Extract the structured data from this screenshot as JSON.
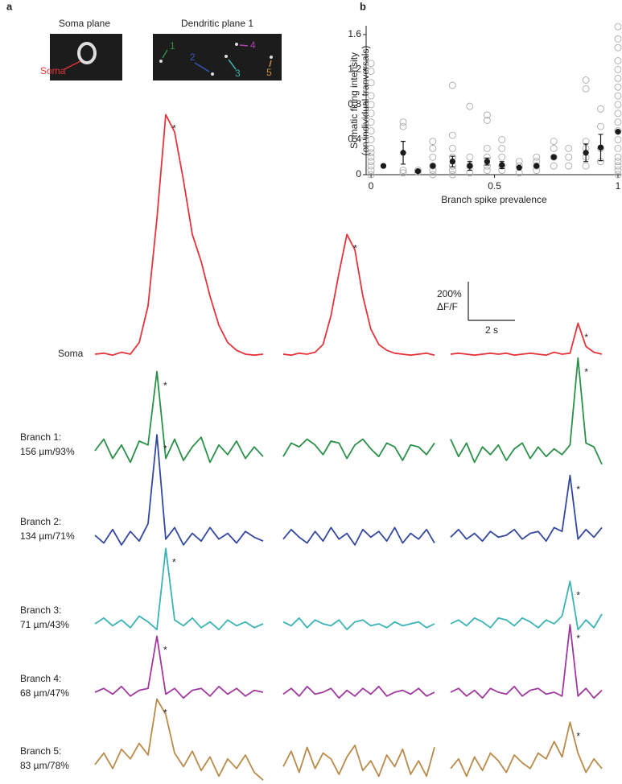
{
  "panel_a": {
    "label": "a",
    "images": [
      {
        "title": "Soma plane",
        "annotations": [
          {
            "label": "Soma",
            "color": "#e5343b"
          }
        ]
      },
      {
        "title": "Dendritic plane 1",
        "annotations": [
          {
            "label": "1",
            "color": "#2a9048"
          },
          {
            "label": "2",
            "color": "#3b55b8"
          },
          {
            "label": "3",
            "color": "#3bb3b5"
          },
          {
            "label": "4",
            "color": "#b040b0"
          },
          {
            "label": "5",
            "color": "#c9904a"
          }
        ]
      }
    ],
    "spike_marker": "*",
    "scale_bar": {
      "y": {
        "value": 200,
        "label": "200%"
      },
      "y_unit": "ΔF/F",
      "x_label": "2 s"
    },
    "rows": [
      {
        "label": [
          "Soma"
        ],
        "color": "#e5343b",
        "traces": [
          {
            "marked": true,
            "values": [
              0,
              5,
              -5,
              10,
              0,
              60,
              250,
              700,
              1240,
              1150,
              900,
              620,
              480,
              300,
              150,
              60,
              20,
              0,
              -5,
              0
            ]
          },
          {
            "marked": true,
            "values": [
              0,
              -5,
              5,
              0,
              10,
              50,
              200,
              420,
              620,
              540,
              300,
              130,
              50,
              20,
              5,
              0,
              -5,
              0,
              5,
              -5
            ]
          },
          {
            "marked": true,
            "values": [
              0,
              5,
              0,
              -5,
              0,
              5,
              0,
              5,
              -5,
              0,
              5,
              0,
              -5,
              10,
              0,
              5,
              160,
              40,
              10,
              0
            ]
          }
        ]
      },
      {
        "label": [
          "Branch 1:",
          "156 µm/93%"
        ],
        "color": "#2a9048",
        "traces": [
          {
            "marked": true,
            "values": [
              0,
              60,
              -40,
              30,
              -60,
              50,
              30,
              410,
              -40,
              60,
              -50,
              20,
              70,
              -60,
              30,
              -20,
              50,
              -40,
              20,
              -30
            ]
          },
          {
            "marked": false,
            "values": [
              -30,
              40,
              20,
              60,
              30,
              -20,
              50,
              40,
              -40,
              30,
              60,
              10,
              -30,
              40,
              20,
              -50,
              30,
              20,
              -20,
              40
            ]
          },
          {
            "marked": true,
            "values": [
              60,
              -30,
              40,
              -60,
              20,
              -20,
              30,
              -50,
              10,
              40,
              -40,
              20,
              -30,
              10,
              -20,
              30,
              480,
              40,
              20,
              -70
            ]
          }
        ]
      },
      {
        "label": [
          "Branch 2:",
          "134 µm/71%"
        ],
        "color": "#33489e",
        "traces": [
          {
            "marked": true,
            "values": [
              0,
              -40,
              30,
              -50,
              20,
              -30,
              60,
              520,
              -20,
              40,
              -50,
              10,
              -30,
              40,
              -20,
              10,
              -40,
              20,
              -10,
              -30
            ]
          },
          {
            "marked": false,
            "values": [
              -20,
              30,
              -10,
              -40,
              20,
              -30,
              40,
              -20,
              10,
              -50,
              30,
              -10,
              20,
              -30,
              40,
              -40,
              10,
              -20,
              30,
              -40
            ]
          },
          {
            "marked": true,
            "values": [
              -10,
              30,
              -20,
              10,
              -30,
              20,
              -10,
              0,
              30,
              -20,
              10,
              20,
              -30,
              40,
              20,
              310,
              -20,
              30,
              -10,
              40
            ]
          }
        ]
      },
      {
        "label": [
          "Branch 3:",
          "71 µm/43%"
        ],
        "color": "#3bb3b5",
        "traces": [
          {
            "marked": true,
            "values": [
              0,
              30,
              -10,
              20,
              -20,
              40,
              10,
              -30,
              390,
              20,
              -10,
              30,
              -20,
              10,
              -30,
              20,
              -10,
              10,
              -20,
              0
            ]
          },
          {
            "marked": false,
            "values": [
              10,
              -10,
              30,
              -20,
              20,
              0,
              -10,
              20,
              -30,
              10,
              20,
              -10,
              0,
              -20,
              10,
              -10,
              0,
              10,
              -20,
              0
            ]
          },
          {
            "marked": true,
            "values": [
              0,
              20,
              -10,
              30,
              10,
              -20,
              30,
              20,
              -10,
              30,
              10,
              -20,
              20,
              0,
              40,
              220,
              -30,
              20,
              -20,
              50
            ]
          }
        ]
      },
      {
        "label": [
          "Branch 4:",
          "68 µm/47%"
        ],
        "color": "#a0399e",
        "traces": [
          {
            "marked": true,
            "values": [
              0,
              20,
              -10,
              30,
              -20,
              10,
              20,
              290,
              -10,
              20,
              -30,
              10,
              20,
              -20,
              30,
              -10,
              20,
              -20,
              10,
              0
            ]
          },
          {
            "marked": false,
            "values": [
              -10,
              20,
              -20,
              30,
              -10,
              0,
              20,
              -30,
              10,
              -20,
              20,
              -10,
              30,
              -20,
              0,
              10,
              -10,
              20,
              -20,
              0
            ]
          },
          {
            "marked": true,
            "values": [
              0,
              20,
              -20,
              10,
              -30,
              20,
              0,
              -10,
              30,
              -20,
              10,
              20,
              -10,
              0,
              -20,
              350,
              -20,
              20,
              -30,
              10
            ]
          }
        ]
      },
      {
        "label": [
          "Branch 5:",
          "83 µm/78%"
        ],
        "color": "#b98a4a",
        "traces": [
          {
            "marked": true,
            "values": [
              0,
              60,
              -20,
              80,
              30,
              110,
              50,
              340,
              260,
              60,
              -10,
              70,
              -30,
              40,
              -60,
              30,
              -20,
              50,
              -40,
              -80
            ]
          },
          {
            "marked": false,
            "values": [
              -10,
              70,
              -40,
              90,
              -20,
              60,
              30,
              -50,
              40,
              100,
              -30,
              20,
              -60,
              50,
              -10,
              80,
              -50,
              20,
              -60,
              90
            ]
          },
          {
            "marked": true,
            "values": [
              -20,
              30,
              -60,
              40,
              -30,
              60,
              20,
              -40,
              50,
              10,
              -20,
              60,
              30,
              120,
              40,
              220,
              60,
              -40,
              30,
              -20
            ]
          }
        ]
      }
    ]
  },
  "chart_data": {
    "type": "scatter",
    "label": "b",
    "xlabel": "Branch spike prevalence",
    "ylabel": [
      "Somatic firing intensity",
      "(on individual tranversals)"
    ],
    "xlim": [
      -0.02,
      1.0
    ],
    "ylim": [
      0,
      1.7
    ],
    "xticks": [
      0,
      0.5,
      1
    ],
    "yticks": [
      0,
      0.4,
      0.8,
      1.2,
      1.6
    ],
    "series": [
      {
        "color": "#aaaaaa",
        "marker": "open",
        "x": [
          0,
          0,
          0,
          0,
          0,
          0,
          0,
          0,
          0,
          0,
          0,
          0,
          0,
          0,
          0,
          0,
          0.13,
          0.13,
          0.13,
          0.13,
          0.19,
          0.19,
          0.25,
          0.25,
          0.25,
          0.25,
          0.25,
          0.25,
          0.33,
          0.33,
          0.33,
          0.33,
          0.33,
          0.33,
          0.33,
          0.4,
          0.4,
          0.4,
          0.4,
          0.47,
          0.47,
          0.47,
          0.47,
          0.47,
          0.47,
          0.53,
          0.53,
          0.53,
          0.53,
          0.53,
          0.6,
          0.6,
          0.6,
          0.67,
          0.67,
          0.67,
          0.67,
          0.74,
          0.74,
          0.74,
          0.74,
          0.8,
          0.8,
          0.8,
          0.87,
          0.87,
          0.87,
          0.87,
          0.87,
          0.87,
          0.93,
          0.93,
          0.93,
          0.93,
          1,
          1,
          1,
          1,
          1,
          1,
          1,
          1,
          1,
          1,
          1,
          1,
          1,
          1,
          1,
          1,
          1,
          1,
          1
        ],
        "values": [
          0,
          0.05,
          0.1,
          0.15,
          0.2,
          0.25,
          0.3,
          0.4,
          0.5,
          0.6,
          0.7,
          0.8,
          0.9,
          1.05,
          1.18,
          1.27,
          0.02,
          0.05,
          0.6,
          0.55,
          0.03,
          0.05,
          0,
          0.05,
          0.1,
          0.2,
          0.3,
          0.38,
          0,
          0.05,
          0.1,
          0.2,
          0.3,
          0.45,
          1.02,
          0.02,
          0.1,
          0.2,
          0.78,
          0.05,
          0.1,
          0.2,
          0.3,
          0.62,
          0.68,
          0.05,
          0.1,
          0.2,
          0.3,
          0.4,
          0.02,
          0.1,
          0.15,
          0.05,
          0.1,
          0.15,
          0.2,
          0.1,
          0.2,
          0.3,
          0.38,
          0.1,
          0.2,
          0.3,
          0.1,
          0.2,
          0.3,
          0.38,
          0.98,
          1.08,
          0.15,
          0.3,
          0.55,
          0.75,
          0,
          0.05,
          0.1,
          0.15,
          0.2,
          0.3,
          0.4,
          0.5,
          0.6,
          0.7,
          0.8,
          0.9,
          1.0,
          1.1,
          1.2,
          1.3,
          1.45,
          1.55,
          1.69
        ]
      },
      {
        "color": "#1a1a1a",
        "marker": "filled",
        "x": [
          0.05,
          0.13,
          0.19,
          0.25,
          0.33,
          0.4,
          0.47,
          0.53,
          0.6,
          0.67,
          0.74,
          0.87,
          0.93,
          1
        ],
        "values": [
          0.1,
          0.25,
          0.04,
          0.1,
          0.15,
          0.1,
          0.15,
          0.11,
          0.08,
          0.1,
          0.2,
          0.25,
          0.31,
          0.49
        ],
        "errors": [
          0,
          0.13,
          0,
          0,
          0.06,
          0.05,
          0.04,
          0.04,
          0,
          0,
          0.02,
          0.1,
          0.15,
          0
        ]
      }
    ]
  }
}
